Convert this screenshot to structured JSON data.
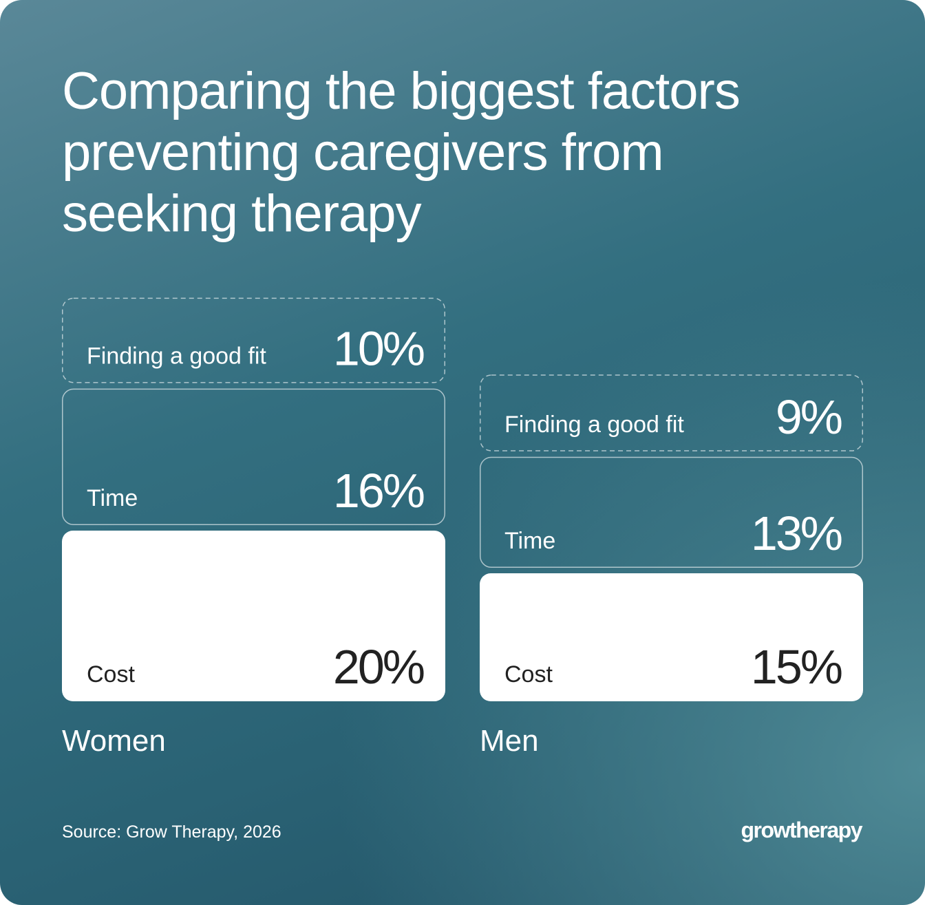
{
  "chart_data": {
    "type": "stacked-bar",
    "title": "Comparing the biggest factors preventing caregivers from seeking therapy",
    "categories": [
      "Women",
      "Men"
    ],
    "series": [
      {
        "name": "Cost",
        "color": "#ffffff",
        "values": [
          20,
          15
        ],
        "value_labels": [
          "20%",
          "15%"
        ]
      },
      {
        "name": "Time",
        "values": [
          16,
          13
        ],
        "value_labels": [
          "16%",
          "13%"
        ]
      },
      {
        "name": "Finding a good fit",
        "values": [
          10,
          9
        ],
        "value_labels": [
          "10%",
          "9%"
        ]
      }
    ],
    "source": "Source: Grow Therapy, 2026",
    "logo": "growtherapy"
  }
}
